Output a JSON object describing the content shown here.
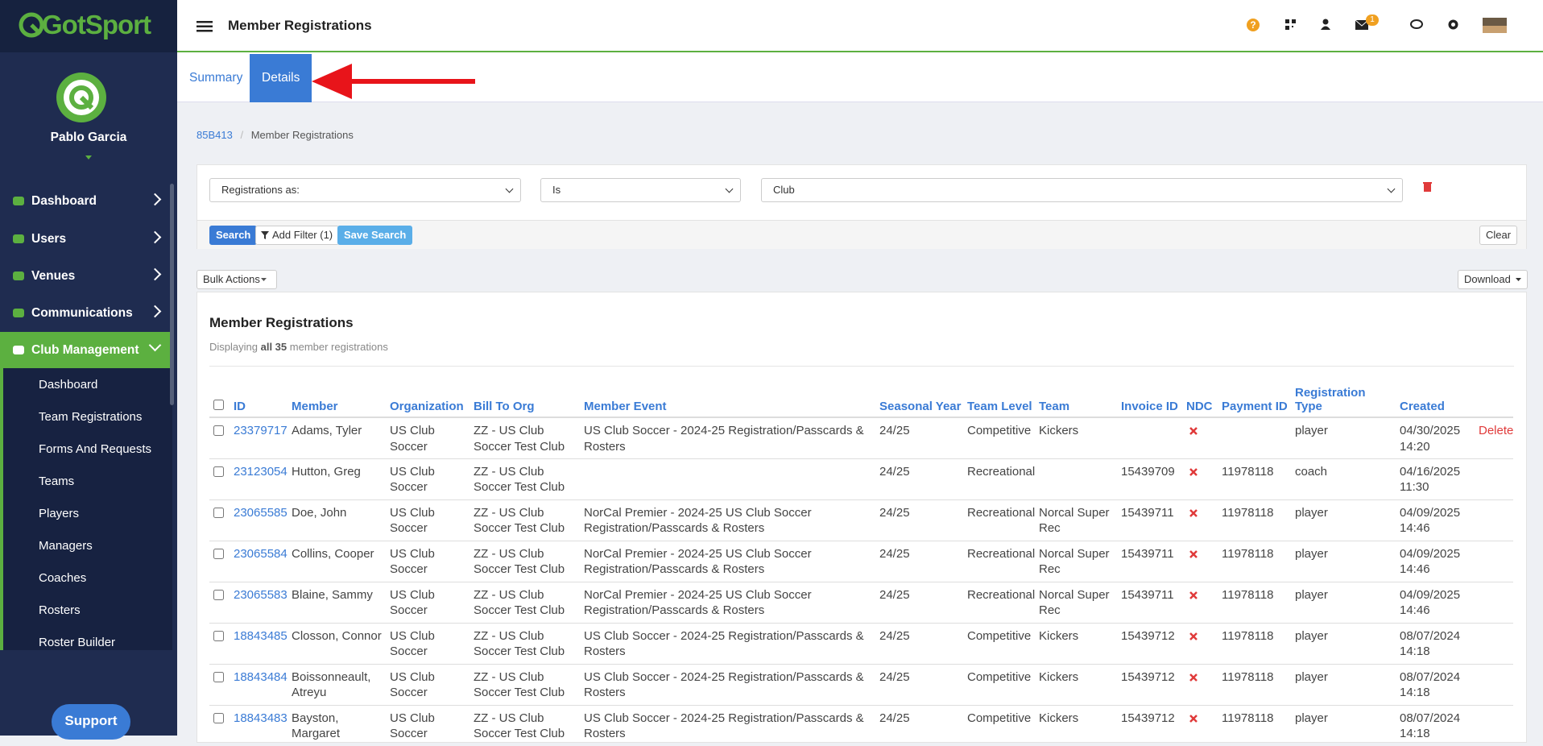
{
  "sidebar": {
    "logo": "GotSport",
    "user_name": "Pablo Garcia",
    "menu": [
      "Dashboard",
      "Users",
      "Venues",
      "Communications",
      "Club Management"
    ],
    "submenu": [
      "Dashboard",
      "Team Registrations",
      "Forms And Requests",
      "Teams",
      "Players",
      "Managers",
      "Coaches",
      "Rosters",
      "Roster Builder"
    ],
    "support": "Support"
  },
  "header": {
    "title": "Member Registrations",
    "mail_badge": "1"
  },
  "tabs": [
    "Summary",
    "Details"
  ],
  "breadcrumb": [
    "85B413",
    "Member Registrations"
  ],
  "filters": {
    "field": "Registrations as:",
    "operator": "Is",
    "value": "Club",
    "buttons": [
      "Search",
      "Add Filter (1)",
      "Save Search"
    ],
    "clear": "Clear"
  },
  "toolbar": {
    "bulk_actions": "Bulk Actions",
    "download": "Download"
  },
  "card": {
    "title": "Member Registrations",
    "display_prefix": "Displaying",
    "display_count": "all 35",
    "display_suffix": "member registrations"
  },
  "table": {
    "columns": [
      "ID",
      "Member",
      "Organization",
      "Bill To Org",
      "Member Event",
      "Seasonal Year",
      "Team Level",
      "Team",
      "Invoice ID",
      "NDC",
      "Payment ID",
      "Registration Type",
      "Created"
    ],
    "rows": [
      {
        "id": "23379717",
        "member": "Adams, Tyler",
        "organization": "US Club Soccer",
        "bill_to_org": "ZZ - US Club Soccer Test Club",
        "member_event": "US Club Soccer - 2024-25 Registration/Passcards & Rosters",
        "seasonal_year": "24/25",
        "team_level": "Competitive",
        "team": "Kickers",
        "invoice_id": null,
        "payment_id": null,
        "registration_type": "player",
        "created": "04/30/2025 14:20",
        "action": "Delete"
      },
      {
        "id": "23123054",
        "member": "Hutton, Greg",
        "organization": "US Club Soccer",
        "bill_to_org": "ZZ - US Club Soccer Test Club",
        "member_event": null,
        "seasonal_year": "24/25",
        "team_level": "Recreational",
        "team": null,
        "invoice_id": "15439709",
        "payment_id": "11978118",
        "registration_type": "coach",
        "created": "04/16/2025 11:30",
        "action": null
      },
      {
        "id": "23065585",
        "member": "Doe, John",
        "organization": "US Club Soccer",
        "bill_to_org": "ZZ - US Club Soccer Test Club",
        "member_event": "NorCal Premier - 2024-25 US Club Soccer Registration/Passcards & Rosters",
        "seasonal_year": "24/25",
        "team_level": "Recreational",
        "team": "Norcal Super Rec",
        "invoice_id": "15439711",
        "payment_id": "11978118",
        "registration_type": "player",
        "created": "04/09/2025 14:46",
        "action": null
      },
      {
        "id": "23065584",
        "member": "Collins, Cooper",
        "organization": "US Club Soccer",
        "bill_to_org": "ZZ - US Club Soccer Test Club",
        "member_event": "NorCal Premier - 2024-25 US Club Soccer Registration/Passcards & Rosters",
        "seasonal_year": "24/25",
        "team_level": "Recreational",
        "team": "Norcal Super Rec",
        "invoice_id": "15439711",
        "payment_id": "11978118",
        "registration_type": "player",
        "created": "04/09/2025 14:46",
        "action": null
      },
      {
        "id": "23065583",
        "member": "Blaine, Sammy",
        "organization": "US Club Soccer",
        "bill_to_org": "ZZ - US Club Soccer Test Club",
        "member_event": "NorCal Premier - 2024-25 US Club Soccer Registration/Passcards & Rosters",
        "seasonal_year": "24/25",
        "team_level": "Recreational",
        "team": "Norcal Super Rec",
        "invoice_id": "15439711",
        "payment_id": "11978118",
        "registration_type": "player",
        "created": "04/09/2025 14:46",
        "action": null
      },
      {
        "id": "18843485",
        "member": "Closson, Connor",
        "organization": "US Club Soccer",
        "bill_to_org": "ZZ - US Club Soccer Test Club",
        "member_event": "US Club Soccer - 2024-25 Registration/Passcards & Rosters",
        "seasonal_year": "24/25",
        "team_level": "Competitive",
        "team": "Kickers",
        "invoice_id": "15439712",
        "payment_id": "11978118",
        "registration_type": "player",
        "created": "08/07/2024 14:18",
        "action": null
      },
      {
        "id": "18843484",
        "member": "Boissonneault, Atreyu",
        "organization": "US Club Soccer",
        "bill_to_org": "ZZ - US Club Soccer Test Club",
        "member_event": "US Club Soccer - 2024-25 Registration/Passcards & Rosters",
        "seasonal_year": "24/25",
        "team_level": "Competitive",
        "team": "Kickers",
        "invoice_id": "15439712",
        "payment_id": "11978118",
        "registration_type": "player",
        "created": "08/07/2024 14:18",
        "action": null
      },
      {
        "id": "18843483",
        "member": "Bayston, Margaret",
        "organization": "US Club Soccer",
        "bill_to_org": "ZZ - US Club Soccer Test Club",
        "member_event": "US Club Soccer - 2024-25 Registration/Passcards & Rosters",
        "seasonal_year": "24/25",
        "team_level": "Competitive",
        "team": "Kickers",
        "invoice_id": "15439712",
        "payment_id": "11978118",
        "registration_type": "player",
        "created": "08/07/2024 14:18",
        "action": null
      }
    ]
  }
}
